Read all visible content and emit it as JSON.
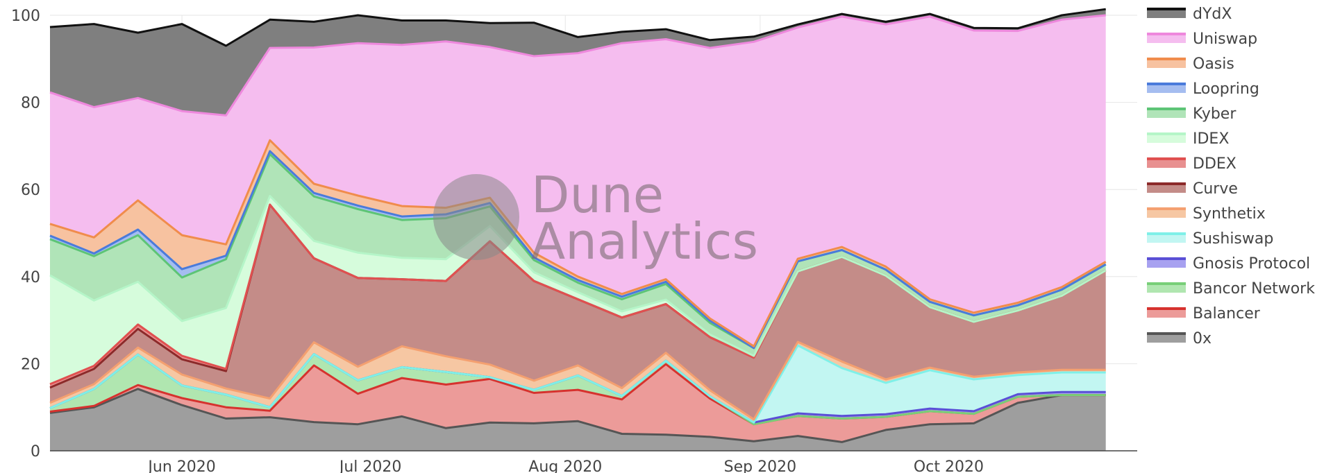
{
  "watermark": {
    "line1": "Dune",
    "line2": "Analytics"
  },
  "chart_data": {
    "type": "area",
    "stacked": true,
    "normalized_percent": true,
    "ylim": [
      0,
      100
    ],
    "yticks": [
      0,
      20,
      40,
      60,
      80,
      100
    ],
    "xlim": [
      "2020-05-11",
      "2020-10-31"
    ],
    "xticks": [
      {
        "date": "2020-06-01",
        "label": "Jun 2020"
      },
      {
        "date": "2020-07-01",
        "label": "Jul 2020"
      },
      {
        "date": "2020-08-01",
        "label": "Aug 2020"
      },
      {
        "date": "2020-09-01",
        "label": "Sep 2020"
      },
      {
        "date": "2020-10-01",
        "label": "Oct 2020"
      }
    ],
    "grid": true,
    "legend_position": "right",
    "x": [
      "2020-05-11",
      "2020-05-18",
      "2020-05-25",
      "2020-06-01",
      "2020-06-08",
      "2020-06-15",
      "2020-06-22",
      "2020-06-29",
      "2020-07-06",
      "2020-07-13",
      "2020-07-20",
      "2020-07-27",
      "2020-08-03",
      "2020-08-10",
      "2020-08-17",
      "2020-08-24",
      "2020-08-31",
      "2020-09-07",
      "2020-09-14",
      "2020-09-21",
      "2020-09-28",
      "2020-10-05",
      "2020-10-12",
      "2020-10-19",
      "2020-10-26"
    ],
    "series": [
      {
        "name": "0x",
        "color": "#555555",
        "fill": "#9e9e9e",
        "values": [
          8.7,
          10,
          14.2,
          10.5,
          7.4,
          7.7,
          6.6,
          6.1,
          7.9,
          5.2,
          6.5,
          6.3,
          6.8,
          3.9,
          3.7,
          3.2,
          2.2,
          3.4,
          2,
          4.8,
          6.1,
          6.3,
          11,
          12.8,
          12.8
        ]
      },
      {
        "name": "Balancer",
        "color": "#d6322e",
        "fill": "#ec9b99",
        "values": [
          0.3,
          0.3,
          0.9,
          1.6,
          2.6,
          1.5,
          13,
          7,
          8.8,
          10,
          10,
          7,
          7.2,
          7.9,
          16.2,
          8.8,
          3.9,
          4.6,
          5.4,
          3,
          3,
          2.2,
          1.4,
          0,
          0
        ]
      },
      {
        "name": "Bancor Network",
        "color": "#78cf78",
        "fill": "#b0e6b0",
        "values": [
          0.8,
          3.9,
          7,
          2.9,
          2.9,
          0.8,
          2.6,
          3.1,
          2.5,
          2.9,
          0.4,
          0.7,
          3.3,
          0.8,
          0.8,
          0.5,
          0,
          0,
          0,
          0,
          0,
          0,
          0,
          0,
          0
        ]
      },
      {
        "name": "Gnosis Protocol",
        "color": "#5a4fd6",
        "fill": "#a7a1f0",
        "values": [
          0,
          0,
          0,
          0,
          0,
          0,
          0,
          0,
          0,
          0,
          0,
          0,
          0,
          0,
          0,
          0,
          0.4,
          0.6,
          0.6,
          0.6,
          0.6,
          0.6,
          0.6,
          0.7,
          0.7
        ]
      },
      {
        "name": "Sushiswap",
        "color": "#7ff0e8",
        "fill": "#c2f6f2",
        "values": [
          0,
          0,
          0,
          0,
          0,
          0,
          0,
          0,
          0,
          0,
          0,
          0,
          0,
          0,
          0,
          0,
          0,
          15.6,
          11,
          7.2,
          8.8,
          7.3,
          4.4,
          4.5,
          4.5
        ]
      },
      {
        "name": "Synthetix",
        "color": "#f4a070",
        "fill": "#f6c7a3",
        "values": [
          1.2,
          1.1,
          1.6,
          2.5,
          1.4,
          2,
          2.7,
          3.1,
          4.8,
          3.6,
          2.9,
          2.1,
          2.3,
          1.8,
          1.8,
          1.4,
          0.7,
          0.8,
          1.5,
          0.8,
          0.6,
          0.6,
          0.6,
          0.6,
          0.6
        ]
      },
      {
        "name": "Curve",
        "color": "#8c2a2a",
        "fill": "#c48c88",
        "values": [
          3.5,
          3.5,
          4.3,
          3.5,
          4,
          44.5,
          19.3,
          20.4,
          15.4,
          17.3,
          28.3,
          22.9,
          15.2,
          16.2,
          11.2,
          12.2,
          14.2,
          16.2,
          24,
          23.8,
          13.9,
          12.6,
          14.2,
          17,
          22.8
        ]
      },
      {
        "name": "DDEX",
        "color": "#e05050",
        "fill": "#e89090",
        "values": [
          0.8,
          0.7,
          1,
          0.8,
          0.5,
          0,
          0,
          0,
          0,
          0,
          0,
          0,
          0,
          0,
          0,
          0,
          0,
          0,
          0,
          0,
          0,
          0,
          0,
          0,
          0
        ]
      },
      {
        "name": "IDEX",
        "color": "#b5f5c8",
        "fill": "#d6fcdc",
        "values": [
          25,
          15,
          9.8,
          8,
          14,
          2,
          4,
          5.8,
          4.9,
          5,
          3.5,
          2,
          1.6,
          1.4,
          1,
          0.6,
          0.4,
          0,
          0,
          0,
          0,
          0,
          0,
          0,
          0
        ]
      },
      {
        "name": "Kyber",
        "color": "#5dc476",
        "fill": "#b0e4b8",
        "values": [
          8.3,
          10.2,
          10.7,
          10,
          11.2,
          9.6,
          10.2,
          10,
          8.7,
          9.4,
          4.5,
          2.8,
          2.2,
          2.8,
          3.6,
          2.7,
          1.8,
          2.3,
          1.6,
          1.4,
          1.2,
          1.5,
          1.2,
          1.4,
          1.4
        ]
      },
      {
        "name": "Loopring",
        "color": "#4a7bdb",
        "fill": "#a5bdf0",
        "values": [
          0.8,
          0.6,
          1.3,
          1.9,
          0.8,
          0.7,
          0.8,
          0.8,
          0.8,
          0.9,
          0.8,
          0.6,
          0.6,
          0.6,
          0.5,
          0.5,
          0,
          0,
          0,
          0,
          0,
          0,
          0,
          0,
          0
        ]
      },
      {
        "name": "Oasis",
        "color": "#f08c4c",
        "fill": "#f7c2a0",
        "values": [
          2.7,
          3.7,
          6.7,
          7.8,
          2.6,
          2.5,
          2.1,
          2.3,
          2.4,
          1.5,
          1.2,
          1.1,
          0.8,
          0.6,
          0.6,
          0.5,
          0.4,
          0.6,
          0.7,
          0.7,
          0.6,
          0.6,
          0.6,
          0.6,
          0.6
        ]
      },
      {
        "name": "Uniswap",
        "color": "#ee88dd",
        "fill": "#f5bdef",
        "values": [
          30.2,
          29.9,
          23.5,
          28.5,
          29.6,
          21.2,
          31.3,
          35,
          37,
          38.2,
          34.6,
          45.1,
          51.3,
          57.6,
          55.1,
          62.1,
          69.9,
          53.1,
          52.9,
          55.6,
          64.9,
          64.8,
          62.4,
          61.4,
          56.6
        ]
      },
      {
        "name": "dYdX",
        "color": "#111111",
        "fill": "#7f7f7f",
        "values": [
          15,
          19.1,
          15,
          20,
          16,
          6.5,
          5.9,
          6.4,
          5.6,
          4.8,
          5.5,
          7.7,
          3.7,
          2.6,
          2.3,
          1.8,
          1.2,
          0.7,
          0.6,
          0.6,
          0.6,
          0.6,
          0.6,
          1,
          1.4
        ]
      }
    ]
  }
}
